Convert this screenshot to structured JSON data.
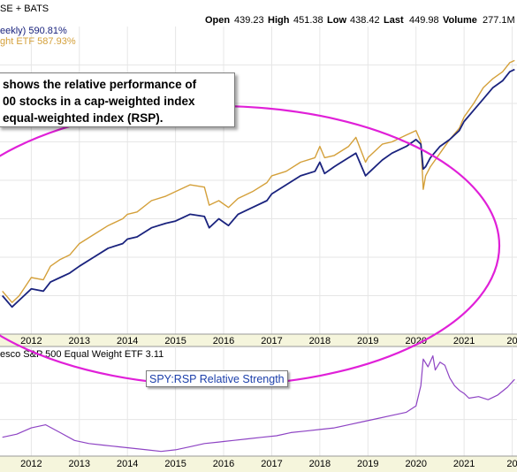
{
  "header": {
    "exchange": "SE + BATS",
    "open_label": "Open",
    "open_value": "439.23",
    "high_label": "High",
    "high_value": "451.38",
    "low_label": "Low",
    "low_value": "438.42",
    "last_label": "Last",
    "last_value": "449.98",
    "volume_label": "Volume",
    "volume_value": "277.1M"
  },
  "annotation": {
    "line1": "shows the relative performance of",
    "line2": "00 stocks in a cap-weighted index",
    "line3": "equal-weighted index (RSP).",
    "rs_label": "SPY:RSP Relative Strength"
  },
  "colors": {
    "spy": "#1a237e",
    "rsp": "#d4a03a",
    "ratio": "#8e44c4",
    "ellipse": "#e020d8",
    "panel_bg": "#ffffff",
    "axis_bg": "#f5f5dc",
    "grid": "#e6e6e6"
  },
  "chart_data": [
    {
      "type": "line",
      "x_unit": "year",
      "x_ticks": [
        "2012",
        "2013",
        "2014",
        "2015",
        "2016",
        "2017",
        "2018",
        "2019",
        "2020",
        "2021",
        "20"
      ],
      "xlim": [
        2011.35,
        2022.1
      ],
      "ylim": [
        -40,
        640
      ],
      "grid": true,
      "series": [
        {
          "name": "eekly) 590.81%",
          "color_key": "spy",
          "x": [
            2011.4,
            2011.6,
            2011.75,
            2012.0,
            2012.25,
            2012.4,
            2012.6,
            2012.8,
            2013.0,
            2013.3,
            2013.6,
            2013.9,
            2014.0,
            2014.2,
            2014.5,
            2014.8,
            2015.0,
            2015.3,
            2015.6,
            2015.7,
            2015.9,
            2016.1,
            2016.3,
            2016.6,
            2016.9,
            2017.0,
            2017.3,
            2017.6,
            2017.9,
            2018.0,
            2018.1,
            2018.3,
            2018.6,
            2018.75,
            2018.95,
            2019.0,
            2019.3,
            2019.5,
            2019.8,
            2020.0,
            2020.1,
            2020.15,
            2020.2,
            2020.3,
            2020.5,
            2020.7,
            2020.9,
            2021.0,
            2021.2,
            2021.4,
            2021.6,
            2021.8,
            2021.95,
            2022.05
          ],
          "y": [
            45,
            20,
            35,
            60,
            55,
            75,
            85,
            95,
            110,
            130,
            150,
            160,
            170,
            175,
            195,
            205,
            210,
            225,
            220,
            195,
            215,
            200,
            225,
            240,
            255,
            270,
            290,
            310,
            320,
            340,
            315,
            330,
            350,
            360,
            310,
            315,
            345,
            360,
            375,
            390,
            380,
            325,
            330,
            350,
            375,
            390,
            410,
            430,
            455,
            480,
            505,
            520,
            540,
            545
          ]
        },
        {
          "name": "ght ETF 587.93%",
          "color_key": "rsp",
          "x": [
            2011.4,
            2011.6,
            2011.75,
            2012.0,
            2012.25,
            2012.4,
            2012.6,
            2012.8,
            2013.0,
            2013.3,
            2013.6,
            2013.9,
            2014.0,
            2014.2,
            2014.5,
            2014.8,
            2015.0,
            2015.3,
            2015.6,
            2015.7,
            2015.9,
            2016.1,
            2016.3,
            2016.6,
            2016.9,
            2017.0,
            2017.3,
            2017.6,
            2017.9,
            2018.0,
            2018.1,
            2018.3,
            2018.6,
            2018.75,
            2018.95,
            2019.0,
            2019.3,
            2019.5,
            2019.8,
            2020.0,
            2020.1,
            2020.15,
            2020.2,
            2020.3,
            2020.5,
            2020.7,
            2020.9,
            2021.0,
            2021.2,
            2021.4,
            2021.6,
            2021.8,
            2021.95,
            2022.05
          ],
          "y": [
            55,
            30,
            45,
            85,
            80,
            110,
            125,
            135,
            160,
            180,
            200,
            215,
            225,
            230,
            255,
            265,
            275,
            290,
            285,
            245,
            255,
            240,
            260,
            275,
            295,
            310,
            320,
            340,
            350,
            375,
            350,
            355,
            375,
            395,
            340,
            350,
            380,
            385,
            400,
            410,
            385,
            280,
            310,
            330,
            360,
            390,
            415,
            440,
            470,
            505,
            525,
            540,
            560,
            565
          ]
        }
      ]
    },
    {
      "type": "line",
      "title": "esco S&P 500 Equal Weight ETF 3.11",
      "x_unit": "year",
      "x_ticks": [
        "2012",
        "2013",
        "2014",
        "2015",
        "2016",
        "2017",
        "2018",
        "2019",
        "2020",
        "2021",
        "20"
      ],
      "xlim": [
        2011.35,
        2022.1
      ],
      "ylim": [
        2.6,
        3.3
      ],
      "grid": true,
      "series": [
        {
          "name": "SPY:RSP Relative Strength",
          "color_key": "ratio",
          "x": [
            2011.4,
            2011.7,
            2012.0,
            2012.3,
            2012.6,
            2012.9,
            2013.2,
            2013.5,
            2013.8,
            2014.1,
            2014.4,
            2014.7,
            2015.0,
            2015.3,
            2015.6,
            2015.9,
            2016.2,
            2016.5,
            2016.8,
            2017.1,
            2017.4,
            2017.7,
            2018.0,
            2018.3,
            2018.6,
            2018.9,
            2019.2,
            2019.5,
            2019.8,
            2020.0,
            2020.1,
            2020.15,
            2020.25,
            2020.35,
            2020.4,
            2020.5,
            2020.6,
            2020.7,
            2020.8,
            2020.9,
            2021.0,
            2021.1,
            2021.3,
            2021.5,
            2021.7,
            2021.9,
            2022.05
          ],
          "y": [
            2.72,
            2.74,
            2.78,
            2.8,
            2.75,
            2.7,
            2.68,
            2.67,
            2.66,
            2.65,
            2.64,
            2.63,
            2.64,
            2.66,
            2.68,
            2.69,
            2.7,
            2.71,
            2.72,
            2.73,
            2.75,
            2.76,
            2.77,
            2.78,
            2.8,
            2.82,
            2.84,
            2.86,
            2.88,
            2.92,
            3.05,
            3.22,
            3.17,
            3.24,
            3.15,
            3.2,
            3.18,
            3.1,
            3.05,
            3.02,
            3.0,
            2.97,
            2.98,
            2.96,
            2.99,
            3.04,
            3.09
          ]
        }
      ]
    }
  ]
}
